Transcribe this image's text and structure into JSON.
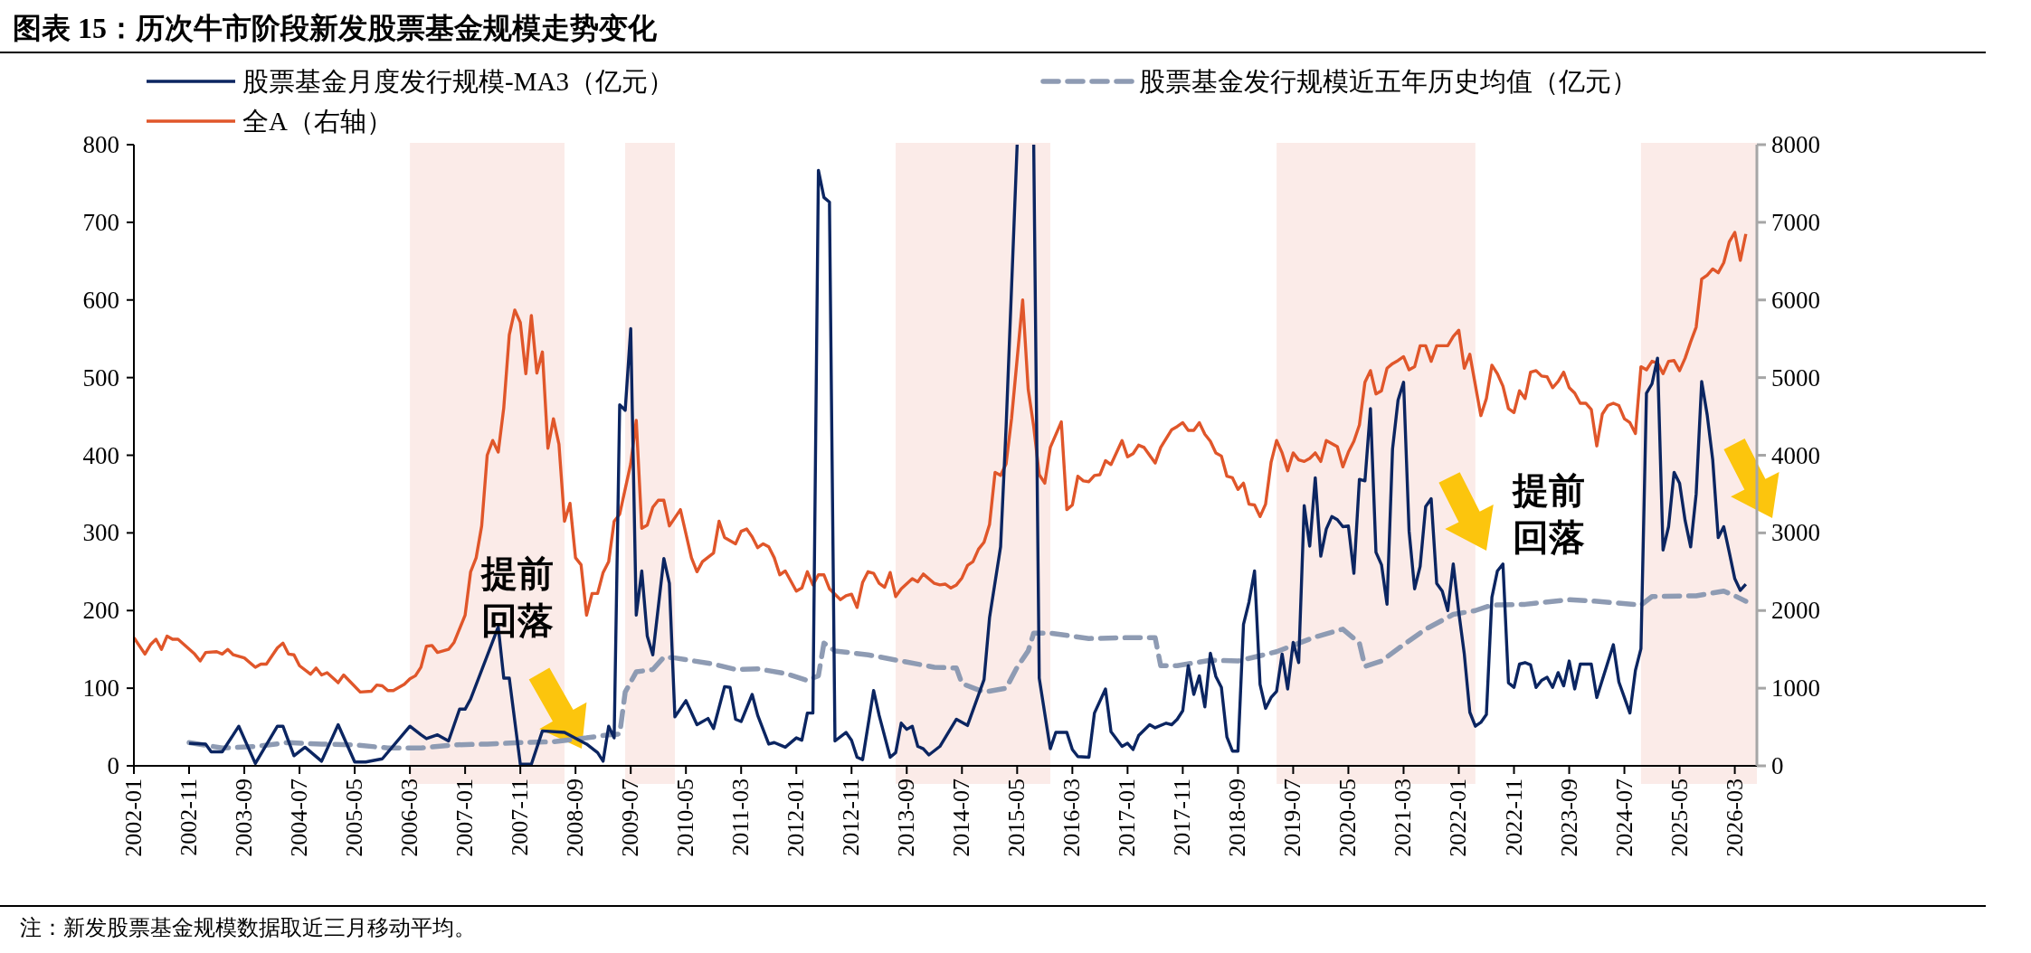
{
  "chart_data": {
    "type": "line",
    "title": "图表 15：历次牛市阶段新发股票基金规模走势变化",
    "legend": "top",
    "grid": false,
    "marker": "none",
    "xlim": [
      "2002-01",
      "2026-07"
    ],
    "xticks": [
      "2002-01",
      "2002-11",
      "2003-09",
      "2004-07",
      "2005-05",
      "2006-03",
      "2007-01",
      "2007-11",
      "2008-09",
      "2009-07",
      "2010-05",
      "2011-03",
      "2012-01",
      "2012-11",
      "2013-09",
      "2014-07",
      "2015-05",
      "2016-03",
      "2017-01",
      "2017-11",
      "2018-09",
      "2019-07",
      "2020-05",
      "2021-03",
      "2022-01",
      "2022-11",
      "2023-09",
      "2024-07",
      "2025-05",
      "2026-03"
    ],
    "ylim": [
      0,
      800
    ],
    "yticks": [
      0,
      100,
      200,
      300,
      400,
      500,
      600,
      700,
      800
    ],
    "y2lim": [
      0,
      8000
    ],
    "y2ticks": [
      0,
      1000,
      2000,
      3000,
      4000,
      5000,
      6000,
      7000,
      8000
    ],
    "bands": [
      {
        "axis": "x",
        "from": "2006-03",
        "to": "2008-07",
        "color": "#fbebe8"
      },
      {
        "axis": "x",
        "from": "2009-06",
        "to": "2010-03",
        "color": "#fbebe8"
      },
      {
        "axis": "x",
        "from": "2013-07",
        "to": "2015-11",
        "color": "#fbebe8"
      },
      {
        "axis": "x",
        "from": "2019-04",
        "to": "2022-04",
        "color": "#fbebe8"
      },
      {
        "axis": "x",
        "from": "2024-10",
        "to": "2026-07",
        "color": "#fbebe8"
      }
    ],
    "series": [
      {
        "name": "股票基金月度发行规模-MA3（亿元）",
        "color": "#0b2561",
        "axis": "y",
        "line_style": "solid",
        "x": [
          "2002-11",
          "2003-02",
          "2003-03",
          "2003-05",
          "2003-08",
          "2003-11",
          "2004-03",
          "2004-04",
          "2004-06",
          "2004-08",
          "2004-11",
          "2005-02",
          "2005-05",
          "2005-07",
          "2005-10",
          "2006-03",
          "2006-05",
          "2006-06",
          "2006-08",
          "2006-10",
          "2006-12",
          "2007-01",
          "2007-02",
          "2007-07",
          "2007-08",
          "2007-09",
          "2007-11",
          "2008-01",
          "2008-03",
          "2008-07",
          "2008-11",
          "2009-01",
          "2009-02",
          "2009-03",
          "2009-04",
          "2009-05",
          "2009-06",
          "2009-07",
          "2009-08",
          "2009-09",
          "2009-10",
          "2009-11",
          "2010-01",
          "2010-02",
          "2010-03",
          "2010-05",
          "2010-07",
          "2010-09",
          "2010-10",
          "2010-12",
          "2011-01",
          "2011-02",
          "2011-03",
          "2011-05",
          "2011-06",
          "2011-08",
          "2011-09",
          "2011-11",
          "2012-01",
          "2012-02",
          "2012-03",
          "2012-04",
          "2012-05",
          "2012-06",
          "2012-07",
          "2012-08",
          "2012-10",
          "2012-11",
          "2012-12",
          "2013-01",
          "2013-03",
          "2013-04",
          "2013-06",
          "2013-07",
          "2013-08",
          "2013-09",
          "2013-10",
          "2013-11",
          "2013-12",
          "2014-01",
          "2014-03",
          "2014-06",
          "2014-08",
          "2014-11",
          "2014-12",
          "2015-02",
          "2015-03",
          "2015-05",
          "2015-06",
          "2015-07",
          "2015-08",
          "2015-09",
          "2015-11",
          "2015-12",
          "2016-02",
          "2016-03",
          "2016-04",
          "2016-06",
          "2016-07",
          "2016-09",
          "2016-10",
          "2016-12",
          "2017-01",
          "2017-02",
          "2017-03",
          "2017-05",
          "2017-06",
          "2017-08",
          "2017-09",
          "2017-10",
          "2017-11",
          "2017-12",
          "2018-01",
          "2018-02",
          "2018-03",
          "2018-04",
          "2018-05",
          "2018-06",
          "2018-07",
          "2018-08",
          "2018-09",
          "2018-10",
          "2018-11",
          "2018-12",
          "2019-01",
          "2019-02",
          "2019-03",
          "2019-04",
          "2019-05",
          "2019-06",
          "2019-07",
          "2019-08",
          "2019-09",
          "2019-10",
          "2019-11",
          "2019-12",
          "2020-01",
          "2020-02",
          "2020-03",
          "2020-04",
          "2020-05",
          "2020-06",
          "2020-07",
          "2020-08",
          "2020-09",
          "2020-10",
          "2020-11",
          "2020-12",
          "2021-01",
          "2021-02",
          "2021-03",
          "2021-04",
          "2021-05",
          "2021-06",
          "2021-07",
          "2021-08",
          "2021-09",
          "2021-10",
          "2021-11",
          "2021-12",
          "2022-01",
          "2022-02",
          "2022-03",
          "2022-04",
          "2022-05",
          "2022-06",
          "2022-07",
          "2022-08",
          "2022-09",
          "2022-10",
          "2022-11",
          "2022-12",
          "2023-01",
          "2023-02",
          "2023-03",
          "2023-04",
          "2023-05",
          "2023-06",
          "2023-07",
          "2023-08",
          "2023-09",
          "2023-10",
          "2023-11",
          "2024-01",
          "2024-02",
          "2024-05",
          "2024-06",
          "2024-08",
          "2024-09",
          "2024-10",
          "2024-11",
          "2024-12",
          "2025-01",
          "2025-02",
          "2025-03",
          "2025-04",
          "2025-05",
          "2025-06",
          "2025-07",
          "2025-08",
          "2025-09",
          "2025-10",
          "2025-11",
          "2025-12",
          "2026-01",
          "2026-02",
          "2026-03",
          "2026-04",
          "2026-05"
        ],
        "values": [
          29,
          28,
          18,
          18,
          51,
          3,
          51,
          51,
          13,
          24,
          6,
          53,
          5,
          5,
          9,
          51,
          40,
          35,
          40,
          32,
          73,
          73,
          86,
          179,
          113,
          113,
          2,
          2,
          45,
          43,
          28,
          17,
          6,
          51,
          36,
          465,
          458,
          563,
          194,
          251,
          167,
          143,
          267,
          235,
          63,
          84,
          53,
          61,
          48,
          102,
          101,
          60,
          57,
          92,
          65,
          28,
          30,
          24,
          36,
          33,
          68,
          68,
          767,
          732,
          726,
          32,
          43,
          33,
          11,
          8,
          97,
          65,
          11,
          17,
          55,
          47,
          51,
          25,
          22,
          14,
          25,
          60,
          52,
          111,
          191,
          282,
          437,
          800,
          null,
          null,
          800,
          113,
          22,
          43,
          43,
          21,
          12,
          11,
          68,
          99,
          44,
          25,
          29,
          21,
          39,
          53,
          49,
          55,
          53,
          60,
          71,
          129,
          92,
          116,
          76,
          145,
          115,
          101,
          37,
          19,
          19,
          182,
          211,
          251,
          105,
          74,
          88,
          96,
          144,
          99,
          159,
          133,
          335,
          283,
          371,
          270,
          305,
          321,
          317,
          308,
          309,
          248,
          369,
          367,
          460,
          275,
          259,
          208,
          408,
          471,
          494,
          302,
          228,
          257,
          334,
          344,
          235,
          225,
          200,
          260,
          198,
          144,
          69,
          51,
          56,
          66,
          217,
          251,
          260,
          107,
          101,
          131,
          133,
          130,
          101,
          110,
          114,
          101,
          120,
          103,
          135,
          99,
          131,
          131,
          88,
          156,
          108,
          68,
          123,
          151,
          480,
          492,
          525,
          278,
          308,
          378,
          364,
          316,
          282,
          350,
          495,
          452,
          394,
          294,
          308,
          275,
          241,
          226,
          234
        ]
      },
      {
        "name": "股票基金发行规模近五年历史均值（亿元）",
        "color": "#8e9bb3",
        "axis": "y",
        "line_style": "dashed",
        "x": [
          "2002-11",
          "2003-05",
          "2003-11",
          "2004-05",
          "2004-11",
          "2005-05",
          "2005-11",
          "2006-05",
          "2006-11",
          "2007-05",
          "2007-11",
          "2008-05",
          "2008-11",
          "2009-03",
          "2009-05",
          "2009-06",
          "2009-08",
          "2009-11",
          "2010-01",
          "2010-03",
          "2010-10",
          "2011-02",
          "2011-06",
          "2011-11",
          "2012-03",
          "2012-05",
          "2012-06",
          "2012-08",
          "2013-02",
          "2013-08",
          "2014-02",
          "2014-06",
          "2014-07",
          "2014-11",
          "2015-03",
          "2015-05",
          "2015-07",
          "2015-08",
          "2015-11",
          "2016-06",
          "2017-01",
          "2017-06",
          "2017-07",
          "2017-10",
          "2018-04",
          "2018-09",
          "2019-04",
          "2019-11",
          "2020-04",
          "2020-07",
          "2020-08",
          "2020-11",
          "2021-03",
          "2021-07",
          "2021-12",
          "2022-04",
          "2022-07",
          "2023-01",
          "2023-09",
          "2024-02",
          "2024-10",
          "2024-12",
          "2025-08",
          "2026-01",
          "2026-03",
          "2026-05"
        ],
        "values": [
          30,
          23,
          25,
          30,
          28,
          27,
          23,
          23,
          27,
          28,
          30,
          31,
          36,
          40,
          41,
          95,
          121,
          124,
          140,
          139,
          131,
          124,
          125,
          119,
          110,
          116,
          158,
          148,
          143,
          135,
          127,
          126,
          106,
          95,
          100,
          127,
          148,
          171,
          171,
          164,
          165,
          165,
          129,
          129,
          136,
          135,
          147,
          166,
          176,
          158,
          128,
          135,
          156,
          176,
          195,
          200,
          207,
          208,
          214,
          212,
          207,
          218,
          219,
          225,
          219,
          212
        ]
      },
      {
        "name": "全A（右轴）",
        "color": "#e0562a",
        "axis": "y2",
        "line_style": "solid",
        "x": [
          "2002-01",
          "2002-03",
          "2002-04",
          "2002-05",
          "2002-06",
          "2002-07",
          "2002-08",
          "2002-09",
          "2002-12",
          "2003-01",
          "2003-02",
          "2003-04",
          "2003-05",
          "2003-06",
          "2003-07",
          "2003-09",
          "2003-11",
          "2003-12",
          "2004-01",
          "2004-03",
          "2004-04",
          "2004-05",
          "2004-06",
          "2004-07",
          "2004-09",
          "2004-10",
          "2004-11",
          "2004-12",
          "2005-02",
          "2005-03",
          "2005-06",
          "2005-08",
          "2005-09",
          "2005-10",
          "2005-11",
          "2005-12",
          "2006-02",
          "2006-03",
          "2006-04",
          "2006-05",
          "2006-06",
          "2006-07",
          "2006-08",
          "2006-10",
          "2006-11",
          "2007-01",
          "2007-02",
          "2007-03",
          "2007-04",
          "2007-05",
          "2007-06",
          "2007-07",
          "2007-08",
          "2007-09",
          "2007-10",
          "2007-11",
          "2007-12",
          "2008-01",
          "2008-02",
          "2008-03",
          "2008-04",
          "2008-05",
          "2008-06",
          "2008-07",
          "2008-08",
          "2008-09",
          "2008-10",
          "2008-11",
          "2008-12",
          "2009-01",
          "2009-02",
          "2009-03",
          "2009-04",
          "2009-05",
          "2009-07",
          "2009-08",
          "2009-09",
          "2009-10",
          "2009-11",
          "2009-12",
          "2010-01",
          "2010-02",
          "2010-04",
          "2010-06",
          "2010-07",
          "2010-08",
          "2010-10",
          "2010-11",
          "2010-12",
          "2011-02",
          "2011-03",
          "2011-04",
          "2011-05",
          "2011-06",
          "2011-07",
          "2011-08",
          "2011-09",
          "2011-10",
          "2011-11",
          "2012-01",
          "2012-02",
          "2012-03",
          "2012-04",
          "2012-05",
          "2012-06",
          "2012-07",
          "2012-09",
          "2012-10",
          "2012-11",
          "2012-12",
          "2013-01",
          "2013-02",
          "2013-03",
          "2013-04",
          "2013-05",
          "2013-06",
          "2013-07",
          "2013-08",
          "2013-10",
          "2013-11",
          "2013-12",
          "2014-02",
          "2014-03",
          "2014-04",
          "2014-05",
          "2014-06",
          "2014-07",
          "2014-08",
          "2014-09",
          "2014-10",
          "2014-11",
          "2014-12",
          "2015-01",
          "2015-02",
          "2015-03",
          "2015-04",
          "2015-06",
          "2015-07",
          "2015-08",
          "2015-09",
          "2015-10",
          "2015-11",
          "2016-01",
          "2016-02",
          "2016-03",
          "2016-04",
          "2016-05",
          "2016-06",
          "2016-07",
          "2016-08",
          "2016-09",
          "2016-10",
          "2016-12",
          "2017-01",
          "2017-02",
          "2017-03",
          "2017-04",
          "2017-06",
          "2017-07",
          "2017-09",
          "2017-10",
          "2017-11",
          "2017-12",
          "2018-01",
          "2018-02",
          "2018-03",
          "2018-04",
          "2018-05",
          "2018-06",
          "2018-07",
          "2018-08",
          "2018-09",
          "2018-10",
          "2018-11",
          "2018-12",
          "2019-01",
          "2019-02",
          "2019-03",
          "2019-04",
          "2019-05",
          "2019-06",
          "2019-07",
          "2019-08",
          "2019-09",
          "2019-10",
          "2019-11",
          "2019-12",
          "2020-01",
          "2020-03",
          "2020-04",
          "2020-05",
          "2020-06",
          "2020-07",
          "2020-08",
          "2020-09",
          "2020-10",
          "2020-11",
          "2020-12",
          "2021-01",
          "2021-02",
          "2021-03",
          "2021-04",
          "2021-05",
          "2021-06",
          "2021-07",
          "2021-08",
          "2021-09",
          "2021-11",
          "2021-12",
          "2022-01",
          "2022-02",
          "2022-03",
          "2022-05",
          "2022-06",
          "2022-07",
          "2022-08",
          "2022-09",
          "2022-10",
          "2022-11",
          "2022-12",
          "2023-01",
          "2023-02",
          "2023-03",
          "2023-04",
          "2023-05",
          "2023-06",
          "2023-07",
          "2023-08",
          "2023-09",
          "2023-10",
          "2023-11",
          "2023-12",
          "2024-01",
          "2024-02",
          "2024-03",
          "2024-04",
          "2024-05",
          "2024-06",
          "2024-07",
          "2024-08",
          "2024-09",
          "2024-10",
          "2024-11",
          "2024-12",
          "2025-01",
          "2025-02",
          "2025-03",
          "2025-04",
          "2025-05",
          "2025-06",
          "2025-07",
          "2025-08",
          "2025-09",
          "2025-10",
          "2025-11",
          "2025-12",
          "2026-01",
          "2026-02",
          "2026-03",
          "2026-04",
          "2026-05"
        ],
        "values": [
          1650,
          1440,
          1560,
          1630,
          1500,
          1670,
          1630,
          1630,
          1440,
          1350,
          1460,
          1470,
          1440,
          1500,
          1430,
          1390,
          1270,
          1310,
          1310,
          1520,
          1580,
          1440,
          1430,
          1290,
          1180,
          1260,
          1170,
          1200,
          1070,
          1170,
          950,
          960,
          1040,
          1030,
          970,
          970,
          1050,
          1120,
          1160,
          1270,
          1540,
          1550,
          1460,
          1500,
          1590,
          1940,
          2500,
          2680,
          3090,
          4000,
          4190,
          4040,
          4610,
          5550,
          5870,
          5710,
          5050,
          5800,
          5060,
          5330,
          4090,
          4470,
          4140,
          3150,
          3380,
          2680,
          2590,
          1940,
          2220,
          2220,
          2490,
          2630,
          3150,
          3240,
          3890,
          4450,
          3060,
          3100,
          3330,
          3420,
          3420,
          3090,
          3300,
          2680,
          2500,
          2630,
          2740,
          3150,
          2940,
          2860,
          3020,
          3050,
          2950,
          2810,
          2860,
          2820,
          2680,
          2460,
          2510,
          2250,
          2290,
          2500,
          2330,
          2460,
          2460,
          2280,
          2140,
          2190,
          2210,
          2040,
          2360,
          2500,
          2480,
          2350,
          2300,
          2490,
          2180,
          2280,
          2410,
          2370,
          2470,
          2350,
          2330,
          2340,
          2290,
          2330,
          2420,
          2580,
          2630,
          2790,
          2880,
          3110,
          3780,
          3740,
          3890,
          4480,
          6000,
          4850,
          4370,
          3750,
          3640,
          4100,
          4430,
          3300,
          3360,
          3730,
          3670,
          3660,
          3740,
          3750,
          3930,
          3880,
          4190,
          3980,
          4020,
          4130,
          4100,
          3900,
          4100,
          4330,
          4370,
          4420,
          4320,
          4320,
          4420,
          4270,
          4180,
          4030,
          3990,
          3730,
          3710,
          3560,
          3640,
          3370,
          3360,
          3210,
          3370,
          3910,
          4190,
          4030,
          3800,
          4030,
          3940,
          3920,
          3960,
          4030,
          3920,
          4190,
          4110,
          3850,
          4040,
          4180,
          4390,
          4940,
          5090,
          4790,
          4830,
          5120,
          5180,
          5220,
          5270,
          5100,
          5140,
          5410,
          5410,
          5210,
          5410,
          5410,
          5530,
          5610,
          5120,
          5300,
          4510,
          4730,
          5160,
          5050,
          4890,
          4600,
          4550,
          4830,
          4730,
          5070,
          5090,
          5020,
          5010,
          4870,
          4950,
          5070,
          4870,
          4800,
          4670,
          4670,
          4590,
          4120,
          4530,
          4640,
          4670,
          4640,
          4470,
          4420,
          4280,
          5140,
          5100,
          5210,
          5190,
          5050,
          5210,
          5220,
          5090,
          5250,
          5460,
          5650,
          6270,
          6320,
          6400,
          6350,
          6480,
          6750,
          6870,
          6510,
          6850
        ]
      }
    ],
    "annotations": [
      "提前回落",
      "提前回落",
      "注：新发股票基金规模数据取近三月移动平均。"
    ]
  }
}
